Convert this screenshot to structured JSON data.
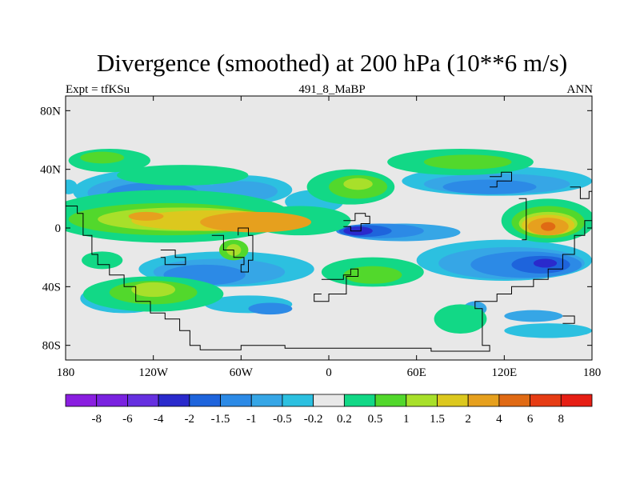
{
  "header": {
    "title": "Divergence (smoothed) at 200 hPa (10**6 m/s)",
    "left_label": "Expt = tfKSu",
    "center_label": "491_8_MaBP",
    "right_label": "ANN"
  },
  "chart_data": {
    "type": "heatmap",
    "title": "Divergence (smoothed) at 200 hPa (10**6 m/s)",
    "projection": "cylindrical equidistant",
    "xlim": [
      -180,
      180
    ],
    "ylim": [
      -90,
      90
    ],
    "x_ticks": [
      {
        "lon": -180,
        "label": "180"
      },
      {
        "lon": -120,
        "label": "120W"
      },
      {
        "lon": -60,
        "label": "60W"
      },
      {
        "lon": 0,
        "label": "0"
      },
      {
        "lon": 60,
        "label": "60E"
      },
      {
        "lon": 120,
        "label": "120E"
      },
      {
        "lon": 180,
        "label": "180"
      }
    ],
    "y_ticks": [
      {
        "lat": 80,
        "label": "80N"
      },
      {
        "lat": 40,
        "label": "40N"
      },
      {
        "lat": 0,
        "label": "0"
      },
      {
        "lat": -40,
        "label": "40S"
      },
      {
        "lat": -80,
        "label": "80S"
      }
    ],
    "colorbar": {
      "colors": [
        "#8a1ee0",
        "#7a22e0",
        "#6630e0",
        "#2a2acc",
        "#1e64dc",
        "#2c8ae6",
        "#36a6e6",
        "#2cc0e0",
        "#e8e8e8",
        "#12d886",
        "#52d82c",
        "#a8e02a",
        "#dcc81e",
        "#e6a01e",
        "#e06a14",
        "#e63c14",
        "#e61e14"
      ],
      "boundaries": [
        "-8",
        "-6",
        "-4",
        "-2",
        "-1.5",
        "-1",
        "-0.5",
        "-0.2",
        "0.2",
        "0.5",
        "1",
        "1.5",
        "2",
        "4",
        "6",
        "8"
      ]
    },
    "fields": [
      {
        "level": "-0.2",
        "color": "#2cc0e0",
        "blobs": [
          {
            "lon": -120,
            "lat": 25,
            "rlon": 55,
            "rlat": 15
          },
          {
            "lon": -60,
            "lat": 26,
            "rlon": 35,
            "rlat": 10
          },
          {
            "lon": -10,
            "lat": 18,
            "rlon": 20,
            "rlat": 8
          },
          {
            "lon": 115,
            "lat": 32,
            "rlon": 65,
            "rlat": 10
          },
          {
            "lon": 120,
            "lat": -22,
            "rlon": 60,
            "rlat": 14
          },
          {
            "lon": -70,
            "lat": -28,
            "rlon": 60,
            "rlat": 12
          },
          {
            "lon": 150,
            "lat": -70,
            "rlon": 30,
            "rlat": 5
          },
          {
            "lon": -178,
            "lat": 28,
            "rlon": 6,
            "rlat": 5
          },
          {
            "lon": -140,
            "lat": -48,
            "rlon": 30,
            "rlat": 10
          },
          {
            "lon": -55,
            "lat": -52,
            "rlon": 30,
            "rlat": 6
          }
        ]
      },
      {
        "level": "-0.5",
        "color": "#36a6e6",
        "blobs": [
          {
            "lon": -120,
            "lat": 24,
            "rlon": 45,
            "rlat": 11
          },
          {
            "lon": -60,
            "lat": 25,
            "rlon": 25,
            "rlat": 7
          },
          {
            "lon": 115,
            "lat": 30,
            "rlon": 50,
            "rlat": 7
          },
          {
            "lon": 125,
            "lat": -24,
            "rlon": 50,
            "rlat": 11
          },
          {
            "lon": -75,
            "lat": -30,
            "rlon": 45,
            "rlat": 9
          },
          {
            "lon": 50,
            "lat": -3,
            "rlon": 40,
            "rlat": 6
          },
          {
            "lon": 140,
            "lat": -60,
            "rlon": 20,
            "rlat": 4
          },
          {
            "lon": 100,
            "lat": -55,
            "rlon": 8,
            "rlat": 5
          }
        ]
      },
      {
        "level": "-1",
        "color": "#2c8ae6",
        "blobs": [
          {
            "lon": -120,
            "lat": 23,
            "rlon": 32,
            "rlat": 8
          },
          {
            "lon": 110,
            "lat": 28,
            "rlon": 32,
            "rlat": 5
          },
          {
            "lon": 135,
            "lat": -25,
            "rlon": 38,
            "rlat": 9
          },
          {
            "lon": -85,
            "lat": -32,
            "rlon": 28,
            "rlat": 7
          },
          {
            "lon": 35,
            "lat": -2,
            "rlon": 30,
            "rlat": 5
          },
          {
            "lon": -40,
            "lat": -55,
            "rlon": 15,
            "rlat": 4
          }
        ]
      },
      {
        "level": "-2",
        "color": "#1e64dc",
        "blobs": [
          {
            "lon": 145,
            "lat": -25,
            "rlon": 20,
            "rlat": 6
          },
          {
            "lon": 25,
            "lat": -2,
            "rlon": 18,
            "rlat": 4
          },
          {
            "lon": -120,
            "lat": 22,
            "rlon": 15,
            "rlat": 4
          }
        ]
      },
      {
        "level": "-4",
        "color": "#2a2acc",
        "blobs": [
          {
            "lon": 20,
            "lat": -2,
            "rlon": 10,
            "rlat": 3
          },
          {
            "lon": 148,
            "lat": -24,
            "rlon": 8,
            "rlat": 3
          }
        ]
      },
      {
        "level": "0.2",
        "color": "#12d886",
        "blobs": [
          {
            "lon": -110,
            "lat": 8,
            "rlon": 85,
            "rlat": 18
          },
          {
            "lon": -150,
            "lat": 46,
            "rlon": 28,
            "rlat": 8
          },
          {
            "lon": -100,
            "lat": 36,
            "rlon": 45,
            "rlat": 7
          },
          {
            "lon": 15,
            "lat": 28,
            "rlon": 30,
            "rlat": 12
          },
          {
            "lon": 90,
            "lat": 45,
            "rlon": 50,
            "rlat": 9
          },
          {
            "lon": 150,
            "lat": 5,
            "rlon": 32,
            "rlat": 15
          },
          {
            "lon": -120,
            "lat": -45,
            "rlon": 48,
            "rlat": 12
          },
          {
            "lon": 30,
            "lat": -30,
            "rlon": 35,
            "rlat": 10
          },
          {
            "lon": 90,
            "lat": -62,
            "rlon": 18,
            "rlat": 10
          },
          {
            "lon": -20,
            "lat": 5,
            "rlon": 35,
            "rlat": 10
          },
          {
            "lon": -155,
            "lat": -22,
            "rlon": 14,
            "rlat": 6
          }
        ]
      },
      {
        "level": "0.5",
        "color": "#52d82c",
        "blobs": [
          {
            "lon": -110,
            "lat": 6,
            "rlon": 68,
            "rlat": 11
          },
          {
            "lon": 20,
            "lat": 28,
            "rlon": 20,
            "rlat": 8
          },
          {
            "lon": 95,
            "lat": 45,
            "rlon": 30,
            "rlat": 5
          },
          {
            "lon": 150,
            "lat": 4,
            "rlon": 25,
            "rlat": 11
          },
          {
            "lon": -120,
            "lat": -44,
            "rlon": 30,
            "rlat": 8
          },
          {
            "lon": 30,
            "lat": -32,
            "rlon": 20,
            "rlat": 6
          },
          {
            "lon": -65,
            "lat": -15,
            "rlon": 10,
            "rlat": 7
          },
          {
            "lon": -155,
            "lat": 48,
            "rlon": 15,
            "rlat": 4
          }
        ]
      },
      {
        "level": "1",
        "color": "#a8e02a",
        "blobs": [
          {
            "lon": -100,
            "lat": 6,
            "rlon": 58,
            "rlat": 8
          },
          {
            "lon": 20,
            "lat": 30,
            "rlon": 10,
            "rlat": 4
          },
          {
            "lon": 150,
            "lat": 3,
            "rlon": 20,
            "rlat": 8
          },
          {
            "lon": -120,
            "lat": -42,
            "rlon": 15,
            "rlat": 5
          },
          {
            "lon": -65,
            "lat": -15,
            "rlon": 5,
            "rlat": 4
          }
        ]
      },
      {
        "level": "1.5",
        "color": "#dcc81e",
        "blobs": [
          {
            "lon": -80,
            "lat": 5,
            "rlon": 55,
            "rlat": 7
          },
          {
            "lon": 150,
            "lat": 2,
            "rlon": 18,
            "rlat": 7
          }
        ]
      },
      {
        "level": "2",
        "color": "#e6a01e",
        "blobs": [
          {
            "lon": -50,
            "lat": 4,
            "rlon": 38,
            "rlat": 7
          },
          {
            "lon": -125,
            "lat": 8,
            "rlon": 12,
            "rlat": 3
          },
          {
            "lon": 150,
            "lat": 1,
            "rlon": 14,
            "rlat": 6
          }
        ]
      },
      {
        "level": "4",
        "color": "#e06a14",
        "blobs": [
          {
            "lon": 150,
            "lat": 1,
            "rlon": 5,
            "rlat": 3
          }
        ]
      }
    ],
    "coastlines": [
      [
        [
          -180,
          15
        ],
        [
          -172,
          15
        ],
        [
          -172,
          10
        ],
        [
          -168,
          10
        ],
        [
          -168,
          -5
        ],
        [
          -162,
          -5
        ],
        [
          -162,
          -18
        ],
        [
          -158,
          -18
        ],
        [
          -158,
          -25
        ],
        [
          -150,
          -25
        ],
        [
          -150,
          -32
        ],
        [
          -140,
          -32
        ],
        [
          -140,
          -40
        ],
        [
          -132,
          -40
        ],
        [
          -132,
          -50
        ],
        [
          -122,
          -50
        ],
        [
          -122,
          -58
        ],
        [
          -112,
          -58
        ],
        [
          -112,
          -62
        ],
        [
          -102,
          -62
        ],
        [
          -102,
          -70
        ],
        [
          -95,
          -70
        ],
        [
          -95,
          -80
        ],
        [
          -88,
          -80
        ],
        [
          -88,
          -83
        ],
        [
          -60,
          -83
        ],
        [
          -60,
          -80
        ],
        [
          -30,
          -80
        ],
        [
          -30,
          -82
        ],
        [
          70,
          -82
        ],
        [
          70,
          -84
        ],
        [
          110,
          -84
        ],
        [
          110,
          -80
        ],
        [
          105,
          -80
        ],
        [
          105,
          -55
        ],
        [
          100,
          -55
        ],
        [
          100,
          -50
        ],
        [
          115,
          -50
        ],
        [
          115,
          -45
        ],
        [
          125,
          -45
        ],
        [
          125,
          -40
        ],
        [
          140,
          -40
        ],
        [
          140,
          -35
        ],
        [
          150,
          -35
        ],
        [
          150,
          -28
        ],
        [
          160,
          -28
        ],
        [
          160,
          -18
        ],
        [
          168,
          -18
        ],
        [
          168,
          -5
        ],
        [
          175,
          -5
        ],
        [
          175,
          5
        ],
        [
          180,
          5
        ]
      ],
      [
        [
          -80,
          -5
        ],
        [
          -72,
          -5
        ],
        [
          -72,
          -15
        ],
        [
          -65,
          -15
        ],
        [
          -65,
          -20
        ],
        [
          -58,
          -20
        ],
        [
          -58,
          -25
        ],
        [
          -60,
          -25
        ],
        [
          -60,
          -30
        ],
        [
          -55,
          -30
        ],
        [
          -55,
          -22
        ],
        [
          -52,
          -22
        ],
        [
          -52,
          -5
        ],
        [
          -55,
          -5
        ],
        [
          -55,
          0
        ],
        [
          -62,
          0
        ],
        [
          -62,
          -5
        ]
      ],
      [
        [
          -5,
          -35
        ],
        [
          10,
          -35
        ],
        [
          10,
          -32
        ],
        [
          15,
          -32
        ],
        [
          15,
          -28
        ],
        [
          20,
          -28
        ],
        [
          20,
          -33
        ],
        [
          12,
          -33
        ],
        [
          12,
          -45
        ],
        [
          0,
          -45
        ],
        [
          0,
          -50
        ],
        [
          -10,
          -50
        ],
        [
          -10,
          -45
        ],
        [
          -5,
          -45
        ]
      ],
      [
        [
          10,
          5
        ],
        [
          18,
          5
        ],
        [
          18,
          10
        ],
        [
          25,
          10
        ],
        [
          25,
          8
        ],
        [
          28,
          8
        ],
        [
          28,
          3
        ],
        [
          22,
          3
        ],
        [
          22,
          -2
        ],
        [
          15,
          -2
        ],
        [
          15,
          1
        ],
        [
          10,
          1
        ]
      ],
      [
        [
          110,
          35
        ],
        [
          118,
          35
        ],
        [
          118,
          38
        ],
        [
          125,
          38
        ],
        [
          125,
          32
        ],
        [
          115,
          32
        ],
        [
          115,
          28
        ],
        [
          110,
          28
        ]
      ],
      [
        [
          130,
          20
        ],
        [
          135,
          20
        ],
        [
          135,
          -8
        ],
        [
          132,
          -8
        ]
      ],
      [
        [
          165,
          28
        ],
        [
          172,
          28
        ],
        [
          172,
          20
        ],
        [
          178,
          20
        ],
        [
          178,
          25
        ],
        [
          180,
          25
        ]
      ],
      [
        [
          -115,
          -15
        ],
        [
          -105,
          -15
        ],
        [
          -105,
          -20
        ],
        [
          -98,
          -20
        ],
        [
          -98,
          -25
        ],
        [
          -112,
          -25
        ],
        [
          -112,
          -20
        ],
        [
          -115,
          -20
        ]
      ],
      [
        [
          160,
          -60
        ],
        [
          168,
          -60
        ],
        [
          168,
          -65
        ],
        [
          160,
          -65
        ]
      ]
    ]
  }
}
